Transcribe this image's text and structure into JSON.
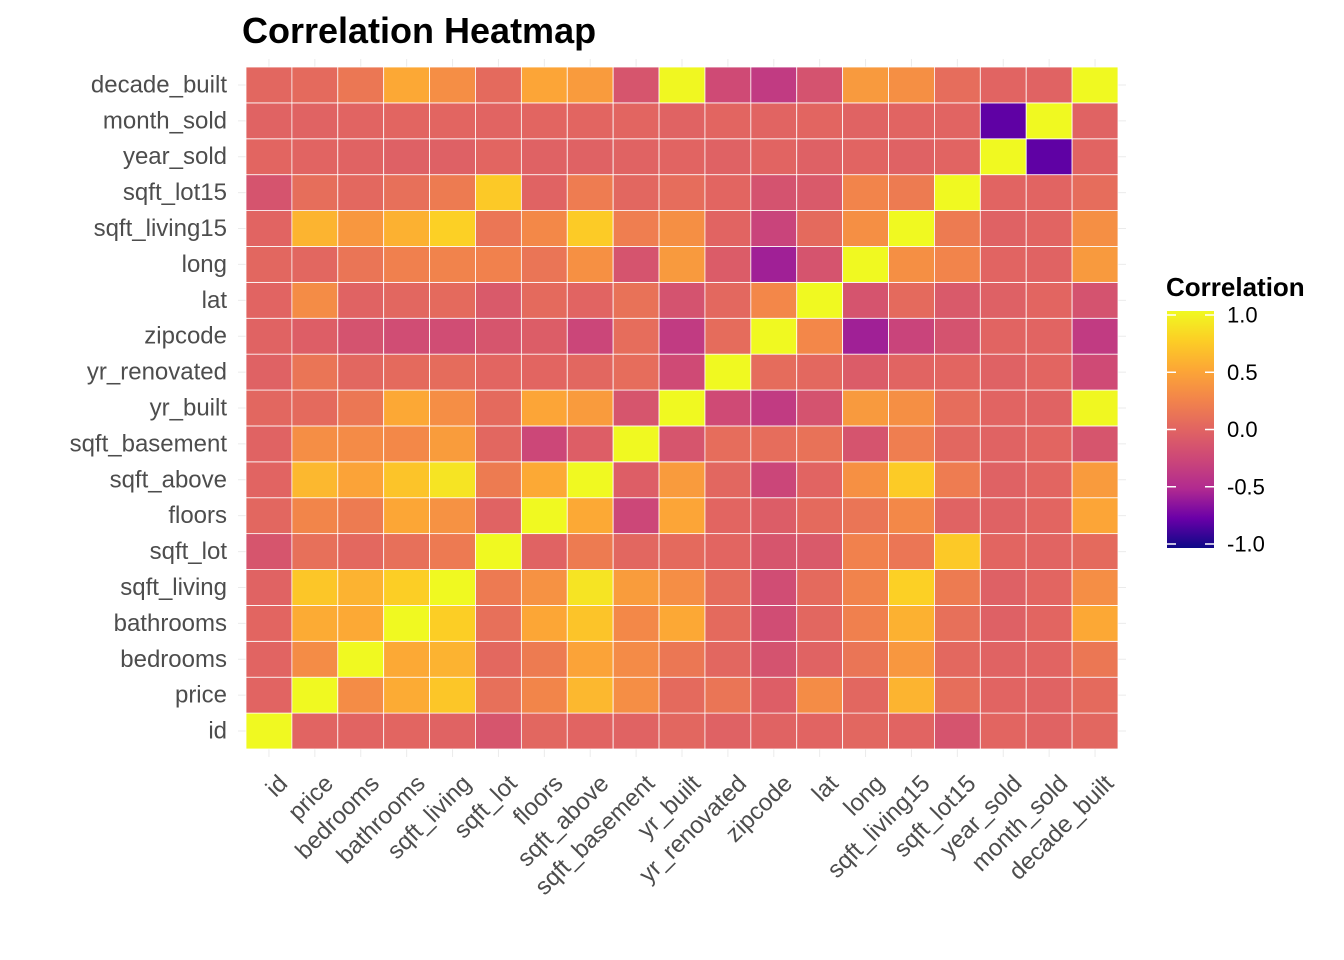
{
  "chart_data": {
    "type": "heatmap",
    "title": "Correlation Heatmap",
    "variables": [
      "id",
      "price",
      "bedrooms",
      "bathrooms",
      "sqft_living",
      "sqft_lot",
      "floors",
      "sqft_above",
      "sqft_basement",
      "yr_built",
      "yr_renovated",
      "zipcode",
      "lat",
      "long",
      "sqft_living15",
      "sqft_lot15",
      "year_sold",
      "month_sold",
      "decade_built"
    ],
    "matrix": [
      [
        1.0,
        0.0,
        0.0,
        0.01,
        -0.01,
        -0.13,
        0.02,
        0.0,
        -0.01,
        0.02,
        -0.02,
        -0.01,
        0.0,
        0.02,
        0.0,
        -0.14,
        0.01,
        -0.01,
        0.02
      ],
      [
        0.0,
        1.0,
        0.31,
        0.53,
        0.7,
        0.09,
        0.26,
        0.61,
        0.32,
        0.05,
        0.13,
        -0.05,
        0.31,
        0.02,
        0.59,
        0.08,
        0.0,
        -0.01,
        0.05
      ],
      [
        0.0,
        0.31,
        1.0,
        0.52,
        0.58,
        0.03,
        0.18,
        0.48,
        0.3,
        0.15,
        0.02,
        -0.15,
        -0.01,
        0.13,
        0.39,
        0.03,
        -0.01,
        0.0,
        0.15
      ],
      [
        0.01,
        0.53,
        0.52,
        1.0,
        0.75,
        0.09,
        0.5,
        0.69,
        0.28,
        0.51,
        0.05,
        -0.2,
        0.02,
        0.22,
        0.57,
        0.09,
        -0.03,
        0.01,
        0.51
      ],
      [
        -0.01,
        0.7,
        0.58,
        0.75,
        1.0,
        0.17,
        0.35,
        0.88,
        0.43,
        0.32,
        0.06,
        -0.2,
        0.05,
        0.24,
        0.76,
        0.18,
        -0.03,
        0.01,
        0.32
      ],
      [
        -0.13,
        0.09,
        0.03,
        0.09,
        0.17,
        1.0,
        -0.01,
        0.18,
        0.02,
        0.05,
        0.01,
        -0.13,
        -0.09,
        0.23,
        0.14,
        0.72,
        0.01,
        0.0,
        0.05
      ],
      [
        0.02,
        0.26,
        0.18,
        0.5,
        0.35,
        -0.01,
        1.0,
        0.52,
        -0.25,
        0.49,
        0.01,
        -0.06,
        0.05,
        0.13,
        0.28,
        -0.01,
        -0.02,
        0.01,
        0.49
      ],
      [
        0.0,
        0.61,
        0.48,
        0.69,
        0.88,
        0.18,
        0.52,
        1.0,
        -0.05,
        0.42,
        0.02,
        -0.26,
        0.0,
        0.34,
        0.73,
        0.19,
        -0.02,
        0.01,
        0.42
      ],
      [
        -0.01,
        0.32,
        0.3,
        0.28,
        0.43,
        0.02,
        -0.25,
        -0.05,
        1.0,
        -0.13,
        0.07,
        0.07,
        0.11,
        -0.14,
        0.2,
        0.02,
        -0.01,
        0.01,
        -0.13
      ],
      [
        0.02,
        0.05,
        0.15,
        0.51,
        0.32,
        0.05,
        0.49,
        0.42,
        -0.13,
        1.0,
        -0.22,
        -0.35,
        -0.15,
        0.41,
        0.33,
        0.07,
        0.0,
        -0.01,
        0.99
      ],
      [
        -0.02,
        0.13,
        0.02,
        0.05,
        0.06,
        0.01,
        0.01,
        0.02,
        0.07,
        -0.22,
        1.0,
        0.06,
        0.03,
        -0.07,
        0.0,
        0.01,
        -0.02,
        0.01,
        -0.22
      ],
      [
        -0.01,
        -0.05,
        -0.15,
        -0.2,
        -0.2,
        -0.13,
        -0.06,
        -0.26,
        0.07,
        -0.35,
        0.06,
        1.0,
        0.27,
        -0.56,
        -0.28,
        -0.15,
        0.0,
        0.0,
        -0.35
      ],
      [
        0.0,
        0.31,
        -0.01,
        0.02,
        0.05,
        -0.09,
        0.05,
        0.0,
        0.11,
        -0.15,
        0.03,
        0.27,
        1.0,
        -0.14,
        0.05,
        -0.09,
        -0.03,
        0.01,
        -0.15
      ],
      [
        0.02,
        0.02,
        0.13,
        0.22,
        0.24,
        0.23,
        0.13,
        0.34,
        -0.14,
        0.41,
        -0.07,
        -0.56,
        -0.14,
        1.0,
        0.33,
        0.25,
        0.0,
        -0.01,
        0.41
      ],
      [
        0.0,
        0.59,
        0.39,
        0.57,
        0.76,
        0.14,
        0.28,
        0.73,
        0.2,
        0.33,
        0.0,
        -0.28,
        0.05,
        0.33,
        1.0,
        0.18,
        -0.02,
        0.0,
        0.33
      ],
      [
        -0.14,
        0.08,
        0.03,
        0.09,
        0.18,
        0.72,
        -0.01,
        0.19,
        0.02,
        0.07,
        0.01,
        -0.15,
        -0.09,
        0.25,
        0.18,
        1.0,
        0.0,
        0.0,
        0.07
      ],
      [
        0.01,
        0.0,
        -0.01,
        -0.03,
        -0.03,
        0.01,
        -0.02,
        -0.02,
        -0.01,
        0.0,
        -0.02,
        0.0,
        -0.03,
        0.0,
        -0.02,
        0.0,
        1.0,
        -0.78,
        0.0
      ],
      [
        -0.01,
        -0.01,
        0.0,
        0.01,
        0.01,
        0.0,
        0.01,
        0.01,
        0.01,
        -0.01,
        0.01,
        0.0,
        0.01,
        -0.01,
        0.0,
        0.0,
        -0.78,
        1.0,
        -0.01
      ],
      [
        0.02,
        0.05,
        0.15,
        0.51,
        0.32,
        0.05,
        0.49,
        0.42,
        -0.13,
        0.99,
        -0.22,
        -0.35,
        -0.15,
        0.41,
        0.33,
        0.07,
        0.0,
        -0.01,
        1.0
      ]
    ],
    "color_scale": {
      "name": "plasma",
      "domain": [
        -1.0,
        1.0
      ],
      "colors": [
        "#0d0887",
        "#6a00a8",
        "#b12a90",
        "#cc4778",
        "#e16462",
        "#f2844b",
        "#fca636",
        "#fcce25",
        "#f0f921"
      ]
    },
    "legend": {
      "title": "Correlation",
      "placement": "right",
      "ticks": [
        "1.0",
        "0.5",
        "0.0",
        "-0.5",
        "-1.0"
      ],
      "tick_values": [
        1.0,
        0.5,
        0.0,
        -0.5,
        -1.0
      ]
    },
    "grid": true
  }
}
